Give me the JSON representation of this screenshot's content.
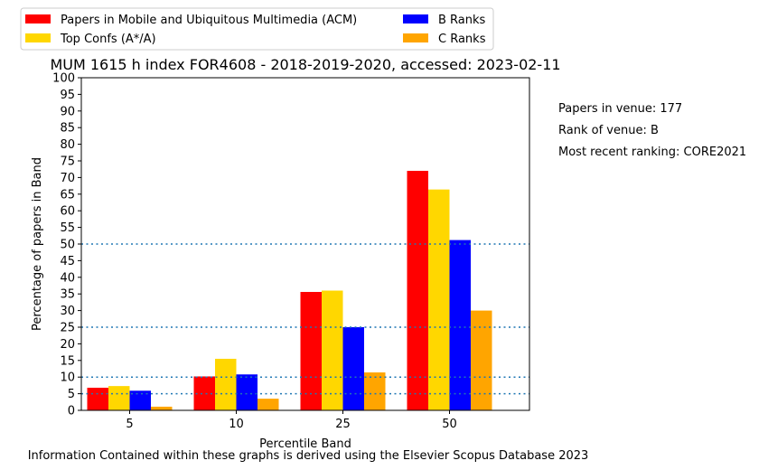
{
  "chart_data": {
    "type": "bar",
    "title": "MUM 1615 h index FOR4608 - 2018-2019-2020, accessed: 2023-02-11",
    "xlabel": "Percentile Band",
    "ylabel": "Percentage of papers in Band",
    "categories": [
      "5",
      "10",
      "25",
      "50"
    ],
    "ylim": [
      0,
      100
    ],
    "yticks": [
      0,
      5,
      10,
      15,
      20,
      25,
      30,
      35,
      40,
      45,
      50,
      55,
      60,
      65,
      70,
      75,
      80,
      85,
      90,
      95,
      100
    ],
    "reference_lines": [
      5,
      10,
      25,
      50
    ],
    "reference_line_color": "#1f77b4",
    "legend_position": "top-left",
    "grid": false,
    "series": [
      {
        "name": "Papers in Mobile and Ubiquitous Multimedia (ACM)",
        "color": "#ff0000",
        "values": [
          6.8,
          10.2,
          35.6,
          72.0
        ]
      },
      {
        "name": "Top Confs (A*/A)",
        "color": "#ffd700",
        "values": [
          7.3,
          15.5,
          36.0,
          66.4
        ]
      },
      {
        "name": "B Ranks",
        "color": "#0000ff",
        "values": [
          5.9,
          10.8,
          25.0,
          51.2
        ]
      },
      {
        "name": "C Ranks",
        "color": "#ffa500",
        "values": [
          1.1,
          3.5,
          11.4,
          30.0
        ]
      }
    ]
  },
  "side_notes": {
    "papers": "Papers in venue: 177",
    "rank": "Rank of venue: B",
    "recent": "Most recent ranking: CORE2021"
  },
  "footer": "Information Contained within these graphs is derived using the Elsevier Scopus Database 2023"
}
